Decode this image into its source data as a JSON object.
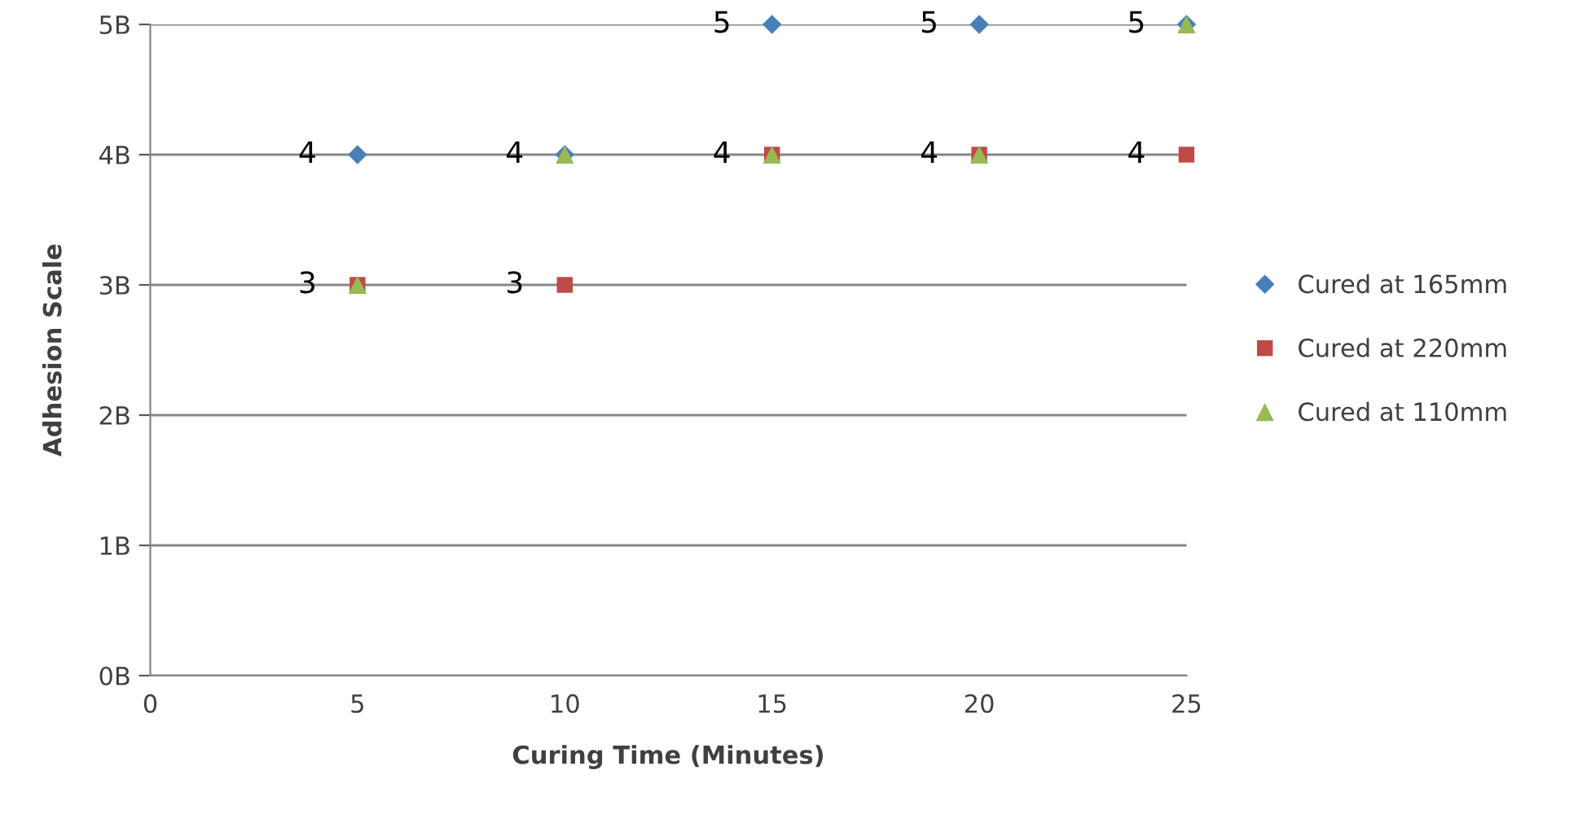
{
  "chart_data": {
    "type": "scatter",
    "xlabel": "Curing Time (Minutes)",
    "ylabel": "Adhesion Scale",
    "x": [
      5,
      10,
      15,
      20,
      25
    ],
    "series": [
      {
        "name": "Cured at 165mm",
        "color": "#4a7ebb",
        "marker": "diamond",
        "values": [
          4,
          4,
          5,
          5,
          5
        ],
        "value_labels": [
          "4",
          "4",
          "5",
          "5",
          "5"
        ]
      },
      {
        "name": "Cured at 220mm",
        "color": "#be4b48",
        "marker": "square",
        "values": [
          3,
          3,
          4,
          4,
          4
        ],
        "value_labels": [
          "3",
          "3",
          "4",
          "4",
          "4"
        ]
      },
      {
        "name": "Cured at 110mm",
        "color": "#98b954",
        "marker": "triangle",
        "values": [
          3,
          4,
          4,
          4,
          5
        ],
        "value_labels": [
          null,
          null,
          null,
          null,
          null
        ]
      }
    ],
    "xlim": [
      0,
      25
    ],
    "xticks": [
      0,
      5,
      10,
      15,
      20,
      25
    ],
    "ylim": [
      0,
      5
    ],
    "yticks": [
      {
        "value": 0,
        "label": "0B"
      },
      {
        "value": 1,
        "label": "1B"
      },
      {
        "value": 2,
        "label": "2B"
      },
      {
        "value": 3,
        "label": "3B"
      },
      {
        "value": 4,
        "label": "4B"
      },
      {
        "value": 5,
        "label": "5B"
      }
    ],
    "grid": "y",
    "legend": "right"
  }
}
